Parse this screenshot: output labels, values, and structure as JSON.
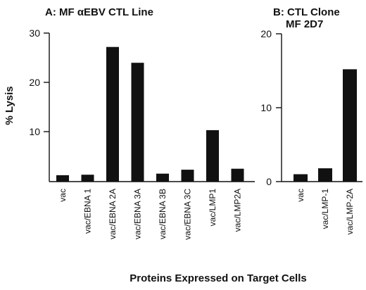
{
  "chart_data": [
    {
      "type": "bar",
      "title": "A:  MF αEBV CTL Line",
      "ylabel": "% Lysis",
      "ylim": [
        0,
        30
      ],
      "yticks": [
        "10",
        "20",
        "30"
      ],
      "categories": [
        "vac",
        "vac/EBNA 1",
        "vac/EBNA 2A",
        "vac/EBNA 3A",
        "vac/EBNA 3B",
        "vac/EBNA 3C",
        "vac/LMP1",
        "vac/LMP2A"
      ],
      "values": [
        1.3,
        1.4,
        27.2,
        24.0,
        1.6,
        2.4,
        10.4,
        2.6
      ],
      "color": "#111111"
    },
    {
      "type": "bar",
      "title": [
        "B:  CTL Clone",
        "MF 2D7"
      ],
      "ylim": [
        0,
        20
      ],
      "yticks": [
        "0",
        "10",
        "20"
      ],
      "categories": [
        "vac",
        "vac/LMP-1",
        "vac/LMP-2A"
      ],
      "values": [
        1.0,
        1.8,
        15.2
      ],
      "color": "#111111"
    }
  ],
  "xlabel": "Proteins Expressed on Target Cells"
}
